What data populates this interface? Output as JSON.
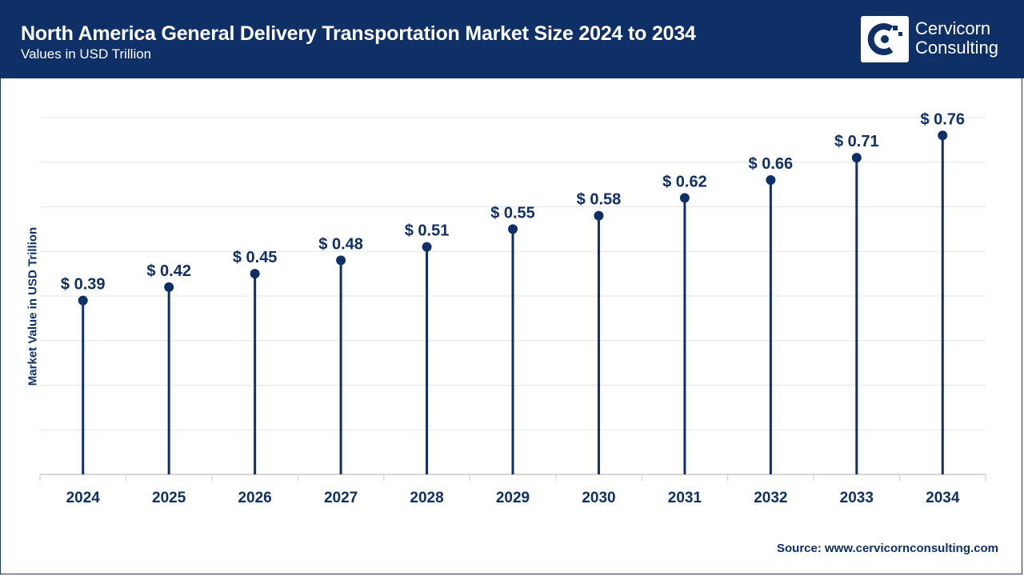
{
  "header": {
    "title": "North America General Delivery Transportation Market Size 2024 to 2034",
    "subtitle": "Values in USD Trillion"
  },
  "logo": {
    "line1": "Cervicorn",
    "line2": "Consulting"
  },
  "source": "Source: www.cervicornconsulting.com",
  "colors": {
    "primary": "#0f3067",
    "grid": "#e3e3e3",
    "axis": "#c8c8c8"
  },
  "chart_data": {
    "type": "lollipop",
    "title": "North America General Delivery Transportation Market Size 2024 to 2034",
    "subtitle": "Values in USD Trillion",
    "xlabel": "",
    "ylabel": "Market Value in USD Trillion",
    "categories": [
      "2024",
      "2025",
      "2026",
      "2027",
      "2028",
      "2029",
      "2030",
      "2031",
      "2032",
      "2033",
      "2034"
    ],
    "values": [
      0.39,
      0.42,
      0.45,
      0.48,
      0.51,
      0.55,
      0.58,
      0.62,
      0.66,
      0.71,
      0.76
    ],
    "labels": [
      "$ 0.39",
      "$ 0.42",
      "$ 0.45",
      "$ 0.48",
      "$ 0.51",
      "$ 0.55",
      "$ 0.58",
      "$ 0.62",
      "$ 0.66",
      "$ 0.71",
      "$ 0.76"
    ],
    "ylim": [
      0,
      0.8
    ],
    "grid": true
  }
}
